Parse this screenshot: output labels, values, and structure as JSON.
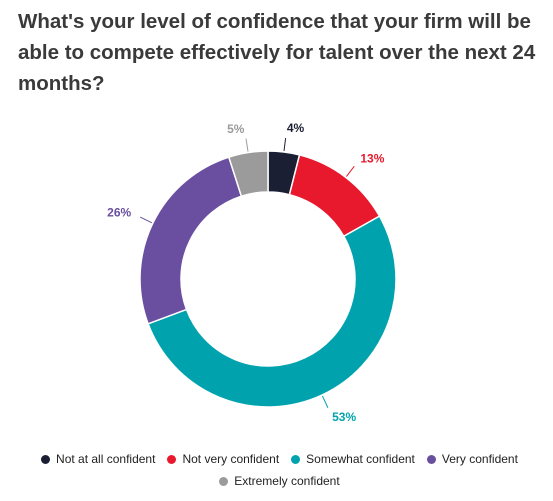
{
  "title": "What's your level of confidence that your firm will be able to compete effectively for talent over the next 24 months?",
  "chart_data": {
    "type": "pie",
    "subtype": "donut",
    "categories": [
      "Not at all confident",
      "Not very confident",
      "Somewhat confident",
      "Very confident",
      "Extremely confident"
    ],
    "values": [
      4,
      13,
      53,
      26,
      5
    ],
    "data_labels": [
      "4%",
      "13%",
      "53%",
      "26%",
      "5%"
    ],
    "colors": [
      "#1b1f33",
      "#e8192c",
      "#00a3ad",
      "#6a4fa0",
      "#9b9b9b"
    ],
    "label_colors": [
      "#1b1f33",
      "#e8192c",
      "#00a3ad",
      "#6a4fa0",
      "#9b9b9b"
    ],
    "legend_position": "bottom"
  },
  "legend": {
    "row1": [
      "Not at all confident",
      "Not very confident",
      "Somewhat confident",
      "Very confident"
    ],
    "row2": [
      "Extremely confident"
    ]
  }
}
